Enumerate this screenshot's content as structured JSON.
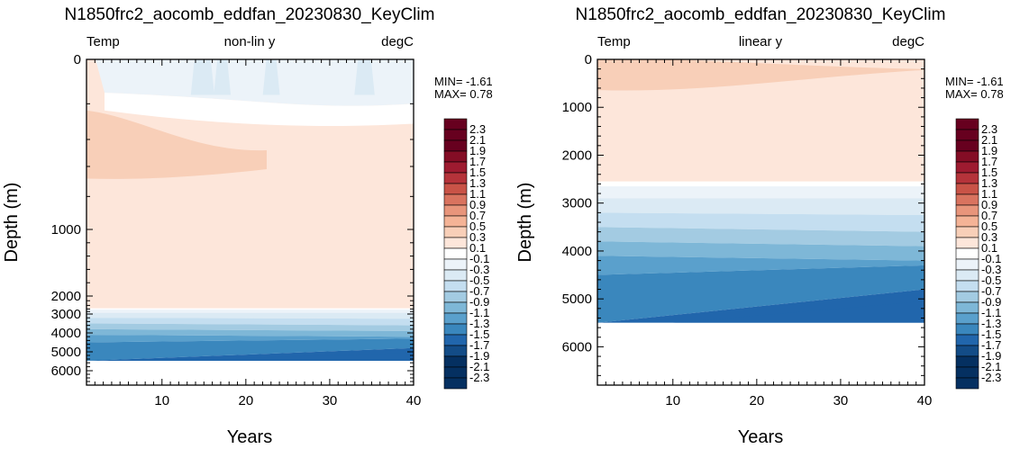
{
  "palette": [
    "#053061",
    "#134c87",
    "#2166ac",
    "#3a87bd",
    "#5aa0cc",
    "#7eb7d7",
    "#a3cbe2",
    "#c4def0",
    "#dbeaf4",
    "#ecf3f9",
    "#ffffff",
    "#fde6da",
    "#f8cfb8",
    "#f4b396",
    "#e8957b",
    "#d9735f",
    "#c95347",
    "#b5333a",
    "#9e1b30",
    "#840d25",
    "#67001f"
  ],
  "colorbar": {
    "labels": [
      "2.3",
      "2.1",
      "1.9",
      "1.7",
      "1.5",
      "1.3",
      "1.1",
      "0.9",
      "0.7",
      "0.5",
      "0.3",
      "0.1",
      "-0.1",
      "-0.3",
      "-0.5",
      "-0.7",
      "-0.9",
      "-1.1",
      "-1.3",
      "-1.5",
      "-1.7",
      "-1.9",
      "-2.1",
      "-2.3"
    ]
  },
  "panels": [
    {
      "title": "N1850frc2_aocomb_eddfan_20230830_KeyClim",
      "left_label": "Temp",
      "center_label": "non-lin y",
      "right_label": "degC",
      "min_text": "MIN= -1.61",
      "max_text": "MAX=  0.78",
      "xlabel": "Years",
      "ylabel": "Depth (m)"
    },
    {
      "title": "N1850frc2_aocomb_eddfan_20230830_KeyClim",
      "left_label": "Temp",
      "center_label": "linear y",
      "right_label": "degC",
      "min_text": "MIN= -1.61",
      "max_text": "MAX=  0.78",
      "xlabel": "Years",
      "ylabel": "Depth (m)"
    }
  ],
  "chart_data": [
    {
      "type": "heatmap",
      "title": "N1850frc2_aocomb_eddfan_20230830_KeyClim",
      "xlabel": "Years",
      "ylabel": "Depth (m)",
      "variable": "Temp",
      "units": "degC",
      "y_scale": "non-lin y",
      "x_ticks": [
        10,
        20,
        30,
        40
      ],
      "y_ticks": [
        0,
        1000,
        2000,
        3000,
        4000,
        5000,
        6000
      ],
      "xlim": [
        1,
        40
      ],
      "ylim": [
        6800,
        0
      ],
      "contour_levels": [
        -2.3,
        -2.1,
        -1.9,
        -1.7,
        -1.5,
        -1.3,
        -1.1,
        -0.9,
        -0.7,
        -0.5,
        -0.3,
        -0.1,
        0.1,
        0.3,
        0.5,
        0.7,
        0.9,
        1.1,
        1.3,
        1.5,
        1.7,
        1.9,
        2.1,
        2.3
      ],
      "min": -1.61,
      "max": 0.78,
      "depth_layers_start_vs_end": [
        {
          "depth": [
            0,
            200
          ],
          "value": "-0.3 to -0.1"
        },
        {
          "depth": [
            200,
            600
          ],
          "value": "0.1 to 0.5"
        },
        {
          "depth": [
            600,
            2700
          ],
          "value": "0.1 to 0.3"
        },
        {
          "depth": [
            2700,
            3600
          ],
          "value": "-0.3 to -0.1"
        },
        {
          "depth": [
            3600,
            4200
          ],
          "value": "-0.7 to -0.5"
        },
        {
          "depth": [
            4200,
            4800
          ],
          "value": "-1.1 to -0.9"
        },
        {
          "depth": [
            4800,
            5500
          ],
          "value": "-1.5 to -1.3"
        },
        {
          "depth": [
            5500,
            6800
          ],
          "value": "no data"
        }
      ]
    },
    {
      "type": "heatmap",
      "title": "N1850frc2_aocomb_eddfan_20230830_KeyClim",
      "xlabel": "Years",
      "ylabel": "Depth (m)",
      "variable": "Temp",
      "units": "degC",
      "y_scale": "linear y",
      "x_ticks": [
        10,
        20,
        30,
        40
      ],
      "y_ticks": [
        0,
        1000,
        2000,
        3000,
        4000,
        5000,
        6000
      ],
      "xlim": [
        1,
        40
      ],
      "ylim": [
        6800,
        0
      ],
      "contour_levels": [
        -2.3,
        -2.1,
        -1.9,
        -1.7,
        -1.5,
        -1.3,
        -1.1,
        -0.9,
        -0.7,
        -0.5,
        -0.3,
        -0.1,
        0.1,
        0.3,
        0.5,
        0.7,
        0.9,
        1.1,
        1.3,
        1.5,
        1.7,
        1.9,
        2.1,
        2.3
      ],
      "min": -1.61,
      "max": 0.78,
      "depth_layers_start_vs_end": [
        {
          "depth": [
            0,
            2600
          ],
          "value": "0.1 to 0.3"
        },
        {
          "depth": [
            2600,
            2900
          ],
          "value": "-0.1 to 0.1"
        },
        {
          "depth": [
            2900,
            3600
          ],
          "value": "-0.3 to -0.1"
        },
        {
          "depth": [
            3600,
            4200
          ],
          "value": "-0.7 to -0.5"
        },
        {
          "depth": [
            4200,
            4800
          ],
          "value": "-1.1 to -0.9"
        },
        {
          "depth": [
            4800,
            5500
          ],
          "value": "-1.5 to -1.3"
        },
        {
          "depth": [
            5500,
            6800
          ],
          "value": "no data"
        }
      ]
    }
  ]
}
